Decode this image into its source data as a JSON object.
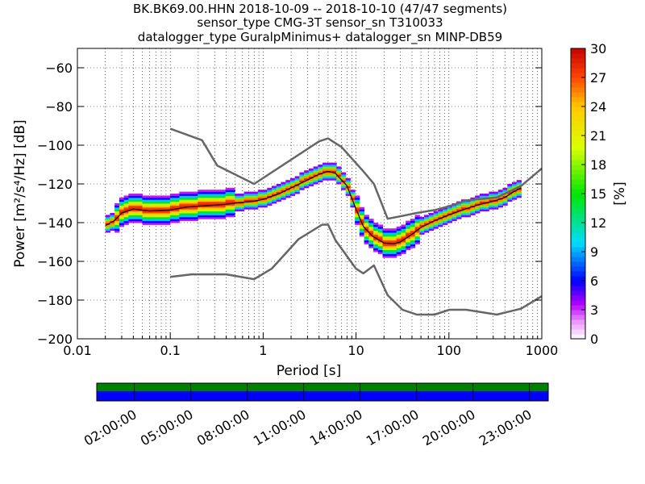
{
  "chart_data": {
    "type": "heatmap",
    "title_lines": [
      "BK.BK69.00.HHN   2018-10-09 -- 2018-10-10  (47/47 segments)",
      "sensor_type CMG-3T sensor_sn T310033",
      "datalogger_type GuralpMinimus+ datalogger_sn MINP-DB59"
    ],
    "xlabel": "Period [s]",
    "ylabel": "Power [m²/s⁴/Hz] [dB]",
    "x_scale": "log",
    "xlim": [
      0.01,
      1000
    ],
    "ylim": [
      -200,
      -50
    ],
    "x_ticks": [
      {
        "value": 0.01,
        "label": "0.01"
      },
      {
        "value": 0.1,
        "label": "0.1"
      },
      {
        "value": 1,
        "label": "1"
      },
      {
        "value": 10,
        "label": "10"
      },
      {
        "value": 100,
        "label": "100"
      },
      {
        "value": 1000,
        "label": "1000"
      }
    ],
    "y_ticks": [
      {
        "value": -60,
        "label": "−60"
      },
      {
        "value": -80,
        "label": "−80"
      },
      {
        "value": -100,
        "label": "−100"
      },
      {
        "value": -120,
        "label": "−120"
      },
      {
        "value": -140,
        "label": "−140"
      },
      {
        "value": -160,
        "label": "−160"
      },
      {
        "value": -180,
        "label": "−180"
      },
      {
        "value": -200,
        "label": "−200"
      }
    ],
    "colorbar": {
      "label": "[%]",
      "min": 0,
      "max": 30,
      "ticks": [
        "0",
        "3",
        "6",
        "9",
        "12",
        "15",
        "18",
        "21",
        "24",
        "27",
        "30"
      ]
    },
    "noise_models": {
      "high": [
        [
          0.1,
          -91.5
        ],
        [
          0.22,
          -97.4
        ],
        [
          0.32,
          -110.5
        ],
        [
          0.8,
          -120
        ],
        [
          4,
          -98
        ],
        [
          5,
          -96.5
        ],
        [
          7,
          -101
        ],
        [
          12,
          -113.5
        ],
        [
          15.6,
          -120
        ],
        [
          21.9,
          -138
        ],
        [
          31.6,
          -136.5
        ],
        [
          45,
          -135
        ],
        [
          70,
          -133.5
        ],
        [
          101,
          -131.5
        ],
        [
          154,
          -128.5
        ],
        [
          328,
          -127
        ],
        [
          600,
          -121
        ],
        [
          1000,
          -112
        ]
      ],
      "low": [
        [
          0.1,
          -168
        ],
        [
          0.17,
          -166.7
        ],
        [
          0.4,
          -166.7
        ],
        [
          0.8,
          -169.2
        ],
        [
          1.24,
          -163.7
        ],
        [
          2.4,
          -148.6
        ],
        [
          4.3,
          -141.1
        ],
        [
          5,
          -141
        ],
        [
          6,
          -149
        ],
        [
          10,
          -163.8
        ],
        [
          12,
          -166.2
        ],
        [
          15.6,
          -162.1
        ],
        [
          21.9,
          -177.5
        ],
        [
          31.6,
          -185
        ],
        [
          45,
          -187.5
        ],
        [
          70,
          -187.5
        ],
        [
          101,
          -185
        ],
        [
          154,
          -185
        ],
        [
          328,
          -187.5
        ],
        [
          600,
          -184.4
        ],
        [
          1000,
          -178
        ]
      ]
    },
    "mean_curve": [
      [
        0.02,
        -141.5
      ],
      [
        0.025,
        -139
      ],
      [
        0.03,
        -135
      ],
      [
        0.04,
        -133
      ],
      [
        0.06,
        -134
      ],
      [
        0.1,
        -133.5
      ],
      [
        0.15,
        -132
      ],
      [
        0.2,
        -131.5
      ],
      [
        0.3,
        -131
      ],
      [
        0.4,
        -130.5
      ],
      [
        0.6,
        -129.5
      ],
      [
        0.8,
        -129
      ],
      [
        1,
        -128
      ],
      [
        1.5,
        -125
      ],
      [
        2,
        -122
      ],
      [
        3,
        -118
      ],
      [
        4,
        -115
      ],
      [
        5,
        -113.5
      ],
      [
        6,
        -114.5
      ],
      [
        8,
        -121
      ],
      [
        10,
        -133
      ],
      [
        12,
        -142
      ],
      [
        15,
        -147
      ],
      [
        20,
        -150.5
      ],
      [
        25,
        -151
      ],
      [
        30,
        -150
      ],
      [
        40,
        -146
      ],
      [
        50,
        -142.5
      ],
      [
        70,
        -139
      ],
      [
        100,
        -136
      ],
      [
        150,
        -133
      ],
      [
        200,
        -131
      ],
      [
        300,
        -129
      ],
      [
        400,
        -127
      ],
      [
        500,
        -124
      ],
      [
        600,
        -122
      ]
    ],
    "time_axis": {
      "labels": [
        "02:00:00",
        "05:00:00",
        "08:00:00",
        "11:00:00",
        "14:00:00",
        "17:00:00",
        "20:00:00",
        "23:00:00"
      ],
      "segments_available": "47/47",
      "track_colors": {
        "top": "#008000",
        "bottom": "#0000ff"
      }
    },
    "colors": {
      "noise_model": "#666666",
      "mean": "#000000"
    }
  }
}
